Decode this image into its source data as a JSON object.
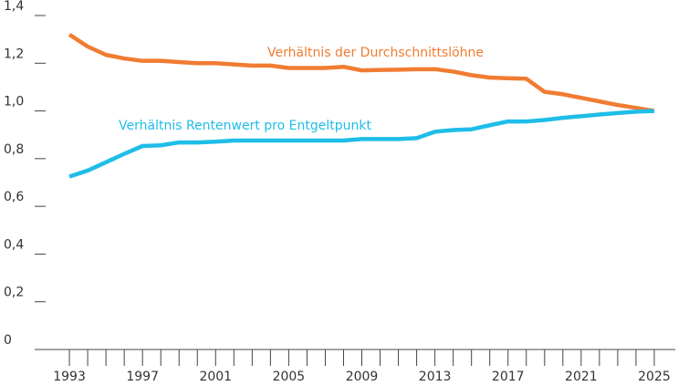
{
  "chart_data": {
    "type": "line",
    "x": [
      1993,
      1994,
      1995,
      1996,
      1997,
      1998,
      1999,
      2000,
      2001,
      2002,
      2003,
      2004,
      2005,
      2006,
      2007,
      2008,
      2009,
      2010,
      2011,
      2012,
      2013,
      2014,
      2015,
      2016,
      2017,
      2018,
      2019,
      2020,
      2021,
      2022,
      2023,
      2024,
      2025
    ],
    "series": [
      {
        "name": "Verhältnis der Durchschnittslöhne",
        "color": "#f07c32",
        "values": [
          1.32,
          1.27,
          1.235,
          1.22,
          1.21,
          1.21,
          1.205,
          1.2,
          1.2,
          1.195,
          1.19,
          1.19,
          1.18,
          1.18,
          1.18,
          1.185,
          1.17,
          1.172,
          1.173,
          1.175,
          1.175,
          1.165,
          1.15,
          1.14,
          1.137,
          1.135,
          1.08,
          1.07,
          1.055,
          1.04,
          1.025,
          1.013,
          1.0
        ]
      },
      {
        "name": "Verhältnis Rentenwert pro Entgeltpunkt",
        "color": "#1fbde8",
        "values": [
          0.725,
          0.75,
          0.785,
          0.82,
          0.853,
          0.856,
          0.868,
          0.868,
          0.871,
          0.876,
          0.876,
          0.876,
          0.876,
          0.876,
          0.876,
          0.876,
          0.882,
          0.882,
          0.882,
          0.886,
          0.913,
          0.92,
          0.923,
          0.94,
          0.956,
          0.956,
          0.962,
          0.971,
          0.978,
          0.985,
          0.991,
          0.997,
          1.0
        ]
      }
    ],
    "xlim": [
      1991.1,
      2026.15
    ],
    "xticks": [
      1993,
      1997,
      2001,
      2005,
      2009,
      2013,
      2017,
      2021,
      2025
    ],
    "ylim": [
      0,
      1.4
    ],
    "yticks": [
      0,
      {
        "value": 0.2,
        "label": "0,2"
      },
      {
        "value": 0.4,
        "label": "0,4"
      },
      {
        "value": 0.6,
        "label": "0,6"
      },
      {
        "value": 0.8,
        "label": "0,8"
      },
      {
        "value": 1.0,
        "label": "1,0"
      },
      {
        "value": 1.2,
        "label": "1,2"
      },
      {
        "value": 1.4,
        "label": "1,4"
      }
    ]
  }
}
